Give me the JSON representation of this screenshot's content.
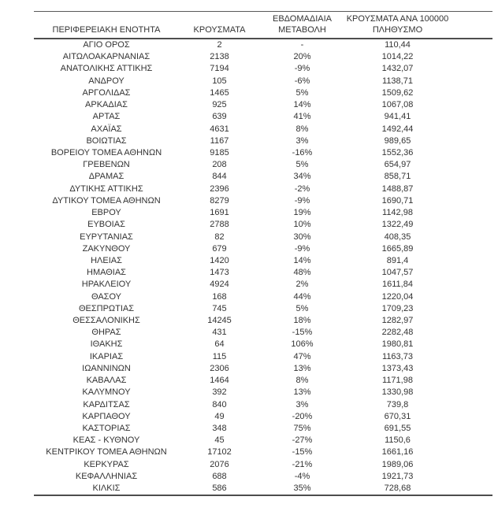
{
  "colors": {
    "text": "#333333",
    "rule_thin": "#595959",
    "rule_thick": "#4d4d4d",
    "background": "#ffffff"
  },
  "table": {
    "header": {
      "region": "ΠΕΡΙΦΕΡΕΙΑΚΗ ΕΝΟΤΗΤΑ",
      "cases": "ΚΡΟΥΣΜΑΤΑ",
      "weekly_change_line1": "ΕΒΔΟΜΑΔΙΑΙΑ",
      "weekly_change_line2": "ΜΕΤΑΒΟΛΗ",
      "per_100k_line1": "ΚΡΟΥΣΜΑΤΑ ΑΝΑ 100000",
      "per_100k_line2": "ΠΛΗΘΥΣΜΟ"
    },
    "rows": [
      {
        "region": "ΑΓΙΟ ΟΡΟΣ",
        "cases": "2",
        "weekly_change": "-",
        "cases_per_100k": "110,44"
      },
      {
        "region": "ΑΙΤΩΛΟΑΚΑΡΝΑΝΙΑΣ",
        "cases": "2138",
        "weekly_change": "20%",
        "cases_per_100k": "1014,22"
      },
      {
        "region": "ΑΝΑΤΟΛΙΚΗΣ ΑΤΤΙΚΗΣ",
        "cases": "7194",
        "weekly_change": "-9%",
        "cases_per_100k": "1432,07"
      },
      {
        "region": "ΑΝΔΡΟΥ",
        "cases": "105",
        "weekly_change": "-6%",
        "cases_per_100k": "1138,71"
      },
      {
        "region": "ΑΡΓΟΛΙΔΑΣ",
        "cases": "1465",
        "weekly_change": "5%",
        "cases_per_100k": "1509,62"
      },
      {
        "region": "ΑΡΚΑΔΙΑΣ",
        "cases": "925",
        "weekly_change": "14%",
        "cases_per_100k": "1067,08"
      },
      {
        "region": "ΑΡΤΑΣ",
        "cases": "639",
        "weekly_change": "41%",
        "cases_per_100k": "941,41"
      },
      {
        "region": "ΑΧΑΪΑΣ",
        "cases": "4631",
        "weekly_change": "8%",
        "cases_per_100k": "1492,44"
      },
      {
        "region": "ΒΟΙΩΤΙΑΣ",
        "cases": "1167",
        "weekly_change": "3%",
        "cases_per_100k": "989,65"
      },
      {
        "region": "ΒΟΡΕΙΟΥ ΤΟΜΕΑ ΑΘΗΝΩΝ",
        "cases": "9185",
        "weekly_change": "-16%",
        "cases_per_100k": "1552,36"
      },
      {
        "region": "ΓΡΕΒΕΝΩΝ",
        "cases": "208",
        "weekly_change": "5%",
        "cases_per_100k": "654,97"
      },
      {
        "region": "ΔΡΑΜΑΣ",
        "cases": "844",
        "weekly_change": "34%",
        "cases_per_100k": "858,71"
      },
      {
        "region": "ΔΥΤΙΚΗΣ ΑΤΤΙΚΗΣ",
        "cases": "2396",
        "weekly_change": "-2%",
        "cases_per_100k": "1488,87"
      },
      {
        "region": "ΔΥΤΙΚΟΥ ΤΟΜΕΑ ΑΘΗΝΩΝ",
        "cases": "8279",
        "weekly_change": "-9%",
        "cases_per_100k": "1690,71"
      },
      {
        "region": "ΕΒΡΟΥ",
        "cases": "1691",
        "weekly_change": "19%",
        "cases_per_100k": "1142,98"
      },
      {
        "region": "ΕΥΒΟΙΑΣ",
        "cases": "2788",
        "weekly_change": "10%",
        "cases_per_100k": "1322,49"
      },
      {
        "region": "ΕΥΡΥΤΑΝΙΑΣ",
        "cases": "82",
        "weekly_change": "30%",
        "cases_per_100k": "408,35"
      },
      {
        "region": "ΖΑΚΥΝΘΟΥ",
        "cases": "679",
        "weekly_change": "-9%",
        "cases_per_100k": "1665,89"
      },
      {
        "region": "ΗΛΕΙΑΣ",
        "cases": "1420",
        "weekly_change": "14%",
        "cases_per_100k": "891,4"
      },
      {
        "region": "ΗΜΑΘΙΑΣ",
        "cases": "1473",
        "weekly_change": "48%",
        "cases_per_100k": "1047,57"
      },
      {
        "region": "ΗΡΑΚΛΕΙΟΥ",
        "cases": "4924",
        "weekly_change": "2%",
        "cases_per_100k": "1611,84"
      },
      {
        "region": "ΘΑΣΟΥ",
        "cases": "168",
        "weekly_change": "44%",
        "cases_per_100k": "1220,04"
      },
      {
        "region": "ΘΕΣΠΡΩΤΙΑΣ",
        "cases": "745",
        "weekly_change": "5%",
        "cases_per_100k": "1709,23"
      },
      {
        "region": "ΘΕΣΣΑΛΟΝΙΚΗΣ",
        "cases": "14245",
        "weekly_change": "18%",
        "cases_per_100k": "1282,97"
      },
      {
        "region": "ΘΗΡΑΣ",
        "cases": "431",
        "weekly_change": "-15%",
        "cases_per_100k": "2282,48"
      },
      {
        "region": "ΙΘΑΚΗΣ",
        "cases": "64",
        "weekly_change": "106%",
        "cases_per_100k": "1980,81"
      },
      {
        "region": "ΙΚΑΡΙΑΣ",
        "cases": "115",
        "weekly_change": "47%",
        "cases_per_100k": "1163,73"
      },
      {
        "region": "ΙΩΑΝΝΙΝΩΝ",
        "cases": "2306",
        "weekly_change": "13%",
        "cases_per_100k": "1373,43"
      },
      {
        "region": "ΚΑΒΑΛΑΣ",
        "cases": "1464",
        "weekly_change": "8%",
        "cases_per_100k": "1171,98"
      },
      {
        "region": "ΚΑΛΥΜΝΟΥ",
        "cases": "392",
        "weekly_change": "13%",
        "cases_per_100k": "1330,98"
      },
      {
        "region": "ΚΑΡΔΙΤΣΑΣ",
        "cases": "840",
        "weekly_change": "3%",
        "cases_per_100k": "739,8"
      },
      {
        "region": "ΚΑΡΠΑΘΟΥ",
        "cases": "49",
        "weekly_change": "-20%",
        "cases_per_100k": "670,31"
      },
      {
        "region": "ΚΑΣΤΟΡΙΑΣ",
        "cases": "348",
        "weekly_change": "75%",
        "cases_per_100k": "691,55"
      },
      {
        "region": "ΚΕΑΣ - ΚΥΘΝΟΥ",
        "cases": "45",
        "weekly_change": "-27%",
        "cases_per_100k": "1150,6"
      },
      {
        "region": "ΚΕΝΤΡΙΚΟΥ ΤΟΜΕΑ ΑΘΗΝΩΝ",
        "cases": "17102",
        "weekly_change": "-15%",
        "cases_per_100k": "1661,16"
      },
      {
        "region": "ΚΕΡΚΥΡΑΣ",
        "cases": "2076",
        "weekly_change": "-21%",
        "cases_per_100k": "1989,06"
      },
      {
        "region": "ΚΕΦΑΛΛΗΝΙΑΣ",
        "cases": "688",
        "weekly_change": "-4%",
        "cases_per_100k": "1921,73"
      },
      {
        "region": "ΚΙΛΚΙΣ",
        "cases": "586",
        "weekly_change": "35%",
        "cases_per_100k": "728,68"
      }
    ]
  }
}
